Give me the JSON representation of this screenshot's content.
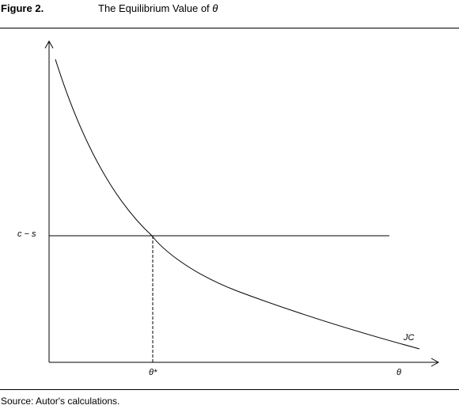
{
  "header": {
    "figure_label": "Figure 2.",
    "title_text": "The Equilibrium Value of ",
    "title_symbol": "θ"
  },
  "diagram": {
    "horizontal_line_label": "c − s",
    "curve_label": "JC",
    "x_axis_label": "θ",
    "equilibrium_label": "θ*"
  },
  "footer": {
    "source": "Source: Autor's calculations."
  }
}
